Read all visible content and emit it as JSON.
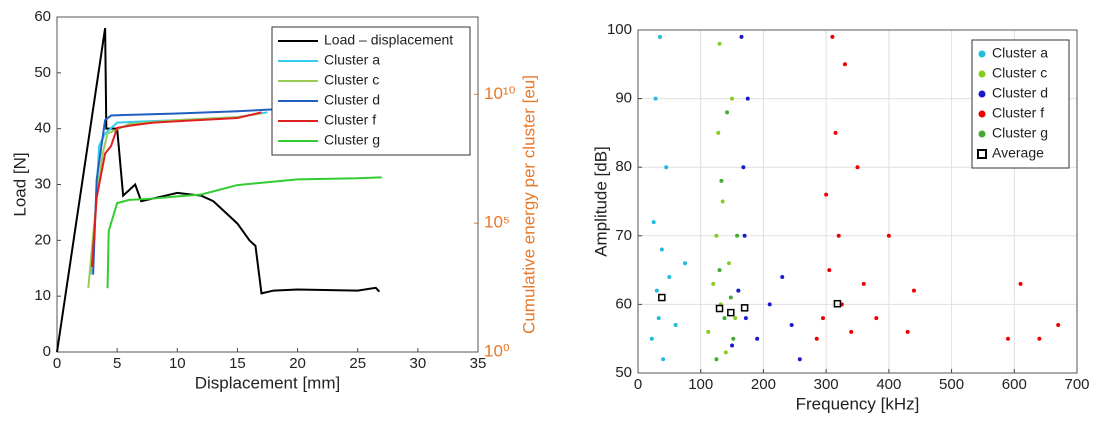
{
  "chart_data": [
    {
      "type": "line",
      "xlabel": "Displacement [mm]",
      "ylabel": "Load [N]",
      "y2label": "Cumulative energy per cluster [eu]",
      "xlim": [
        0,
        35
      ],
      "xticks": [
        0,
        5,
        10,
        15,
        20,
        25,
        30,
        35
      ],
      "ylim": [
        0,
        60
      ],
      "yticks": [
        0,
        10,
        20,
        30,
        40,
        50,
        60
      ],
      "y2lim": [
        1,
        10000000000000.0
      ],
      "y2log": true,
      "y2color": "#e8782a",
      "y2ticks": [
        {
          "value": 1,
          "label": "10⁰"
        },
        {
          "value": 100000,
          "label": "10⁵"
        },
        {
          "value": 10000000000,
          "label": "10¹⁰"
        }
      ],
      "legend": "upper right",
      "series": [
        {
          "name": "Load – displacement",
          "color": "#000000",
          "x": [
            0,
            4,
            4.1,
            5,
            5.5,
            6.5,
            7,
            9,
            10,
            12,
            13,
            14,
            15,
            16,
            16.5,
            17,
            18,
            20,
            25,
            26.5,
            26.8
          ],
          "values": [
            0,
            58,
            40,
            40,
            28,
            30,
            27,
            28,
            28.5,
            28,
            27,
            25,
            23,
            20,
            19,
            10.5,
            11,
            11.2,
            11,
            11.5,
            10.8
          ]
        },
        {
          "name": "Cluster a",
          "color": "#33ccee",
          "axis": "y2",
          "x": [
            2.8,
            3.2,
            3.5,
            4,
            5,
            10,
            15,
            17.5
          ],
          "values": [
            1000,
            300000,
            100000000,
            300000000,
            800000000,
            1000000000,
            1300000000,
            2000000000
          ]
        },
        {
          "name": "Cluster c",
          "color": "#99cc55",
          "axis": "y2",
          "x": [
            2.6,
            3.3,
            3.8,
            4.2,
            6,
            10,
            15,
            17
          ],
          "values": [
            300,
            1000000,
            50000000,
            300000000,
            700000000,
            1000000000,
            1300000000,
            1800000000
          ]
        },
        {
          "name": "Cluster d",
          "color": "#1f5fbf",
          "axis": "y2",
          "x": [
            3,
            3.3,
            4,
            4.5,
            6,
            10,
            15,
            18
          ],
          "values": [
            1000,
            5000000,
            1000000000,
            1500000000,
            1600000000,
            1800000000,
            2200000000,
            2600000000
          ]
        },
        {
          "name": "Cluster f",
          "color": "#e02020",
          "axis": "y2",
          "x": [
            2.9,
            3.3,
            4,
            4.5,
            5,
            6,
            8,
            10,
            15,
            17
          ],
          "values": [
            2000,
            1000000,
            50000000,
            100000000,
            500000000,
            600000000,
            800000000,
            900000000,
            1200000000,
            2000000000
          ]
        },
        {
          "name": "Cluster g",
          "color": "#33cc33",
          "axis": "y2",
          "x": [
            4.2,
            4.3,
            5,
            6,
            8,
            10,
            12,
            15,
            20,
            25,
            27
          ],
          "values": [
            300,
            50000,
            600000,
            800000,
            900000,
            1100000,
            1300000,
            3000000,
            5000000,
            5500000,
            6000000
          ]
        }
      ]
    },
    {
      "type": "scatter",
      "xlabel": "Frequency [kHz]",
      "ylabel": "Amplitude [dB]",
      "xlim": [
        0,
        700
      ],
      "xticks": [
        0,
        100,
        200,
        300,
        400,
        500,
        600,
        700
      ],
      "ylim": [
        50,
        100
      ],
      "yticks": [
        50,
        60,
        70,
        80,
        90,
        100
      ],
      "grid": true,
      "legend": "upper right",
      "series": [
        {
          "name": "Cluster  a",
          "color": "#22bbdd",
          "x": [
            22,
            25,
            28,
            30,
            33,
            35,
            38,
            40,
            45,
            50,
            60,
            75
          ],
          "values": [
            55,
            72,
            90,
            62,
            58,
            99,
            68,
            52,
            80,
            64,
            57,
            66
          ]
        },
        {
          "name": "Cluster  c",
          "color": "#88cc22",
          "x": [
            112,
            120,
            125,
            128,
            130,
            132,
            135,
            140,
            145,
            150,
            155,
            160
          ],
          "values": [
            56,
            63,
            70,
            85,
            98,
            60,
            75,
            53,
            66,
            90,
            58,
            62
          ]
        },
        {
          "name": "Cluster  d",
          "color": "#1a1acc",
          "x": [
            150,
            160,
            165,
            168,
            170,
            172,
            175,
            190,
            210,
            230,
            245,
            258
          ],
          "values": [
            54,
            62,
            99,
            80,
            70,
            58,
            90,
            55,
            60,
            64,
            57,
            52
          ]
        },
        {
          "name": "Cluster  f",
          "color": "#ee0000",
          "x": [
            285,
            295,
            300,
            305,
            310,
            315,
            320,
            325,
            330,
            340,
            350,
            360,
            380,
            400,
            430,
            440,
            590,
            610,
            640,
            670
          ],
          "values": [
            55,
            58,
            76,
            65,
            99,
            85,
            70,
            60,
            95,
            56,
            80,
            63,
            58,
            70,
            56,
            62,
            55,
            63,
            55,
            57
          ]
        },
        {
          "name": "Cluster  g",
          "color": "#44aa33",
          "x": [
            125,
            130,
            133,
            138,
            142,
            148,
            152,
            158
          ],
          "values": [
            52,
            65,
            78,
            58,
            88,
            61,
            55,
            70
          ]
        },
        {
          "name": "Average",
          "color": "#000000",
          "marker": "square",
          "x": [
            38,
            130,
            148,
            170,
            318
          ],
          "values": [
            61,
            59.4,
            58.8,
            59.5,
            60.1
          ]
        }
      ]
    }
  ]
}
